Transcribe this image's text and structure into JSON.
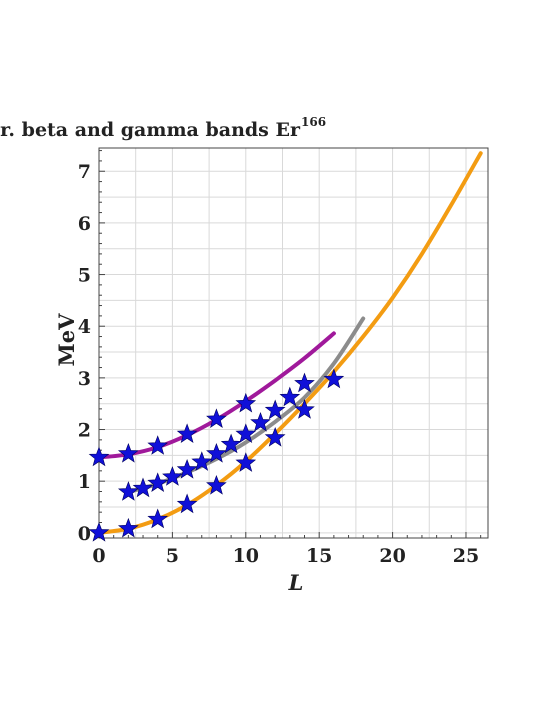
{
  "chart_data": {
    "type": "line",
    "title": "gr. beta and gamma bands Er",
    "title_superscript": "166",
    "xlabel": "L",
    "ylabel": "MeV",
    "xlim": [
      0,
      26.5
    ],
    "ylim": [
      -0.1,
      7.45
    ],
    "xticks": [
      0,
      5,
      10,
      15,
      20,
      25
    ],
    "yticks": [
      0,
      1,
      2,
      3,
      4,
      5,
      6,
      7
    ],
    "grid": true,
    "series": [
      {
        "color": "#F39C12",
        "curve": {
          "x": [
            0,
            2,
            4,
            6,
            8,
            10,
            12,
            14,
            16,
            18,
            20,
            22,
            24,
            26
          ],
          "y": [
            0.0,
            0.08,
            0.26,
            0.54,
            0.92,
            1.38,
            1.92,
            2.5,
            3.12,
            3.8,
            4.55,
            5.4,
            6.35,
            7.35
          ]
        },
        "points": {
          "x": [
            0,
            2,
            4,
            6,
            8,
            10,
            12,
            14,
            16
          ],
          "y": [
            0.0,
            0.08,
            0.26,
            0.55,
            0.91,
            1.35,
            1.84,
            2.38,
            2.97
          ]
        }
      },
      {
        "color": "#8C8C8C",
        "curve": {
          "x": [
            2,
            4,
            6,
            8,
            10,
            12,
            14,
            16,
            18
          ],
          "y": [
            0.79,
            0.95,
            1.17,
            1.43,
            1.75,
            2.15,
            2.62,
            3.28,
            4.15
          ]
        },
        "points": {
          "x": [
            2,
            3,
            4,
            5,
            6,
            7,
            8,
            9,
            10,
            11,
            12,
            13,
            14
          ],
          "y": [
            0.79,
            0.86,
            0.96,
            1.08,
            1.22,
            1.37,
            1.53,
            1.71,
            1.91,
            2.13,
            2.37,
            2.62,
            2.89
          ]
        }
      },
      {
        "color": "#A0199B",
        "curve": {
          "x": [
            0,
            2,
            4,
            6,
            8,
            10,
            12,
            14,
            16
          ],
          "y": [
            1.46,
            1.52,
            1.66,
            1.89,
            2.19,
            2.55,
            2.95,
            3.38,
            3.86
          ]
        },
        "points": {
          "x": [
            0,
            2,
            4,
            6,
            8,
            10
          ],
          "y": [
            1.46,
            1.53,
            1.68,
            1.91,
            2.2,
            2.5
          ]
        }
      }
    ],
    "marker_color": "#1010D8"
  }
}
